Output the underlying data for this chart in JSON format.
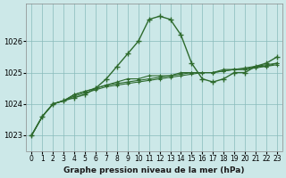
{
  "title": "Graphe pression niveau de la mer (hPa)",
  "bg_color": "#cce8e8",
  "grid_color": "#aaaaaa",
  "line_color": "#2d6a2d",
  "x_labels": [
    "0",
    "1",
    "2",
    "3",
    "4",
    "5",
    "6",
    "7",
    "8",
    "9",
    "10",
    "11",
    "12",
    "13",
    "14",
    "15",
    "16",
    "17",
    "18",
    "19",
    "20",
    "21",
    "22",
    "23"
  ],
  "ylim": [
    1022.5,
    1027.2
  ],
  "yticks": [
    1023,
    1024,
    1025,
    1026
  ],
  "series": [
    [
      1023.0,
      1023.6,
      1024.0,
      1024.1,
      1024.2,
      1024.3,
      1024.5,
      1024.8,
      1025.2,
      1025.6,
      1026.0,
      1026.7,
      1026.8,
      1026.7,
      1026.2,
      1025.3,
      1024.8,
      1024.7,
      1024.8,
      1025.0,
      1025.0,
      1025.2,
      1025.3,
      1025.5
    ],
    [
      1023.0,
      1023.6,
      1024.0,
      1024.1,
      1024.3,
      1024.4,
      1024.5,
      1024.6,
      1024.7,
      1024.8,
      1024.8,
      1024.9,
      1024.9,
      1024.9,
      1025.0,
      1025.0,
      1025.0,
      1025.0,
      1025.1,
      1025.1,
      1025.1,
      1025.2,
      1025.2,
      1025.3
    ],
    [
      1023.0,
      1023.6,
      1024.0,
      1024.1,
      1024.3,
      1024.4,
      1024.5,
      1024.6,
      1024.65,
      1024.7,
      1024.75,
      1024.8,
      1024.85,
      1024.9,
      1024.95,
      1025.0,
      1025.0,
      1025.0,
      1025.05,
      1025.1,
      1025.15,
      1025.2,
      1025.25,
      1025.3
    ],
    [
      1023.0,
      1023.6,
      1024.0,
      1024.1,
      1024.25,
      1024.35,
      1024.45,
      1024.55,
      1024.6,
      1024.65,
      1024.7,
      1024.75,
      1024.8,
      1024.85,
      1024.9,
      1024.95,
      1025.0,
      1025.0,
      1025.05,
      1025.1,
      1025.1,
      1025.15,
      1025.2,
      1025.25
    ]
  ]
}
